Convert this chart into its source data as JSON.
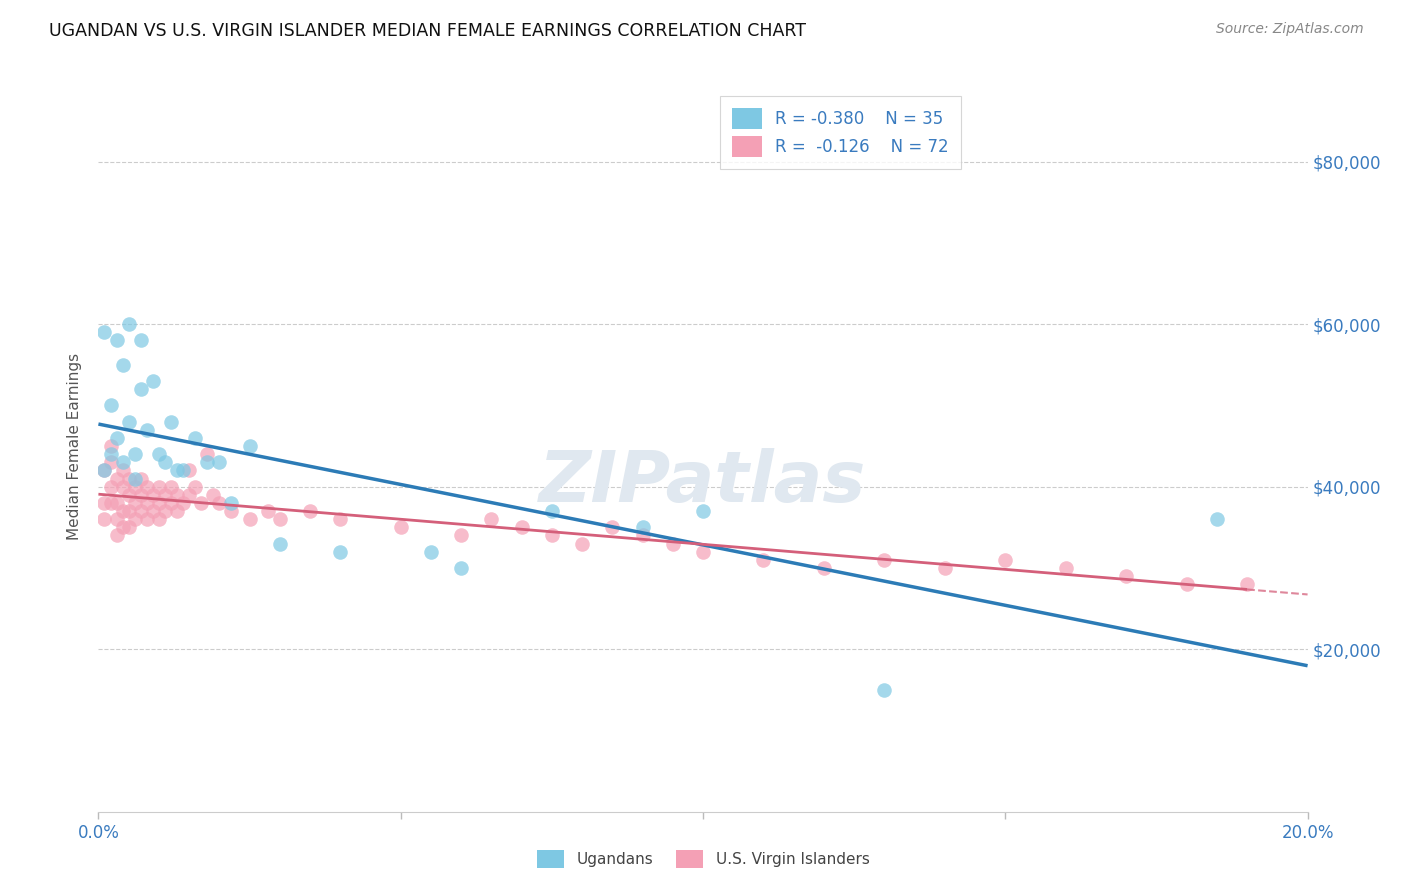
{
  "title": "UGANDAN VS U.S. VIRGIN ISLANDER MEDIAN FEMALE EARNINGS CORRELATION CHART",
  "source": "Source: ZipAtlas.com",
  "ylabel": "Median Female Earnings",
  "y_ticks": [
    20000,
    40000,
    60000,
    80000
  ],
  "y_tick_labels": [
    "$20,000",
    "$40,000",
    "$60,000",
    "$80,000"
  ],
  "x_range": [
    0.0,
    0.2
  ],
  "y_range": [
    0,
    90000
  ],
  "legend_blue_r": "R = -0.380",
  "legend_blue_n": "N = 35",
  "legend_pink_r": "R =  -0.126",
  "legend_pink_n": "N = 72",
  "blue_color": "#7ec8e3",
  "pink_color": "#f4a0b5",
  "blue_line_color": "#2c7bb6",
  "pink_line_color": "#d45f7a",
  "ugandan_x": [
    0.001,
    0.001,
    0.002,
    0.002,
    0.003,
    0.003,
    0.004,
    0.004,
    0.005,
    0.005,
    0.006,
    0.006,
    0.007,
    0.007,
    0.008,
    0.009,
    0.01,
    0.011,
    0.012,
    0.013,
    0.014,
    0.016,
    0.018,
    0.02,
    0.022,
    0.025,
    0.03,
    0.04,
    0.055,
    0.06,
    0.075,
    0.09,
    0.1,
    0.13,
    0.185
  ],
  "ugandan_y": [
    42000,
    59000,
    44000,
    50000,
    46000,
    58000,
    43000,
    55000,
    60000,
    48000,
    44000,
    41000,
    58000,
    52000,
    47000,
    53000,
    44000,
    43000,
    48000,
    42000,
    42000,
    46000,
    43000,
    43000,
    38000,
    45000,
    33000,
    32000,
    32000,
    30000,
    37000,
    35000,
    37000,
    15000,
    36000
  ],
  "vi_x": [
    0.001,
    0.001,
    0.001,
    0.002,
    0.002,
    0.002,
    0.002,
    0.003,
    0.003,
    0.003,
    0.003,
    0.004,
    0.004,
    0.004,
    0.004,
    0.005,
    0.005,
    0.005,
    0.005,
    0.006,
    0.006,
    0.006,
    0.007,
    0.007,
    0.007,
    0.008,
    0.008,
    0.008,
    0.009,
    0.009,
    0.01,
    0.01,
    0.01,
    0.011,
    0.011,
    0.012,
    0.012,
    0.013,
    0.013,
    0.014,
    0.015,
    0.015,
    0.016,
    0.017,
    0.018,
    0.019,
    0.02,
    0.022,
    0.025,
    0.028,
    0.03,
    0.035,
    0.04,
    0.05,
    0.06,
    0.065,
    0.07,
    0.075,
    0.08,
    0.085,
    0.09,
    0.095,
    0.1,
    0.11,
    0.12,
    0.13,
    0.14,
    0.15,
    0.16,
    0.17,
    0.18,
    0.19
  ],
  "vi_y": [
    38000,
    42000,
    36000,
    40000,
    38000,
    43000,
    45000,
    41000,
    38000,
    36000,
    34000,
    42000,
    40000,
    37000,
    35000,
    41000,
    39000,
    37000,
    35000,
    40000,
    38000,
    36000,
    41000,
    39000,
    37000,
    40000,
    38000,
    36000,
    39000,
    37000,
    40000,
    38000,
    36000,
    39000,
    37000,
    40000,
    38000,
    39000,
    37000,
    38000,
    42000,
    39000,
    40000,
    38000,
    44000,
    39000,
    38000,
    37000,
    36000,
    37000,
    36000,
    37000,
    36000,
    35000,
    34000,
    36000,
    35000,
    34000,
    33000,
    35000,
    34000,
    33000,
    32000,
    31000,
    30000,
    31000,
    30000,
    31000,
    30000,
    29000,
    28000,
    28000
  ]
}
